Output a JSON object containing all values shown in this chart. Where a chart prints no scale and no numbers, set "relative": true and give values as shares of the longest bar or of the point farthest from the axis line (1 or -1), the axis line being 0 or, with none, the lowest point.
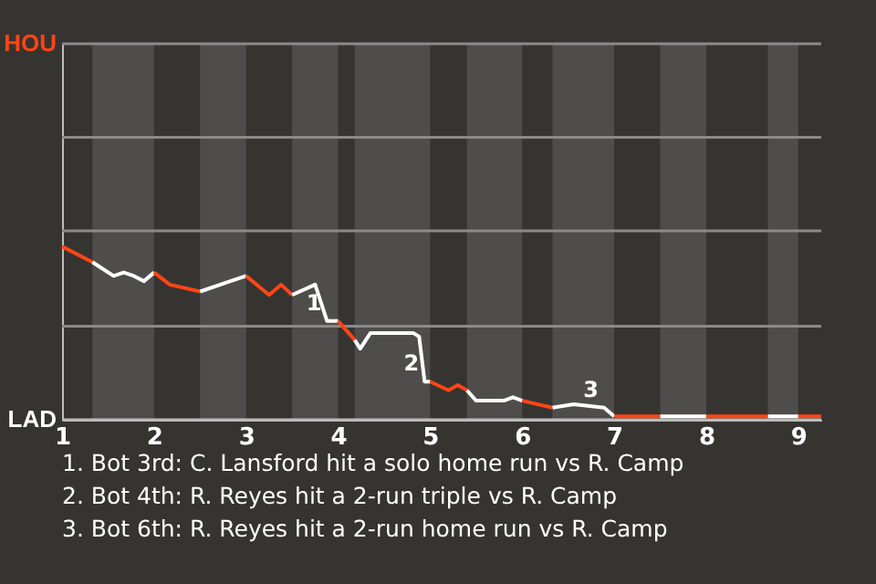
{
  "chart_data": {
    "type": "line",
    "relative": true,
    "series": [
      {
        "color": "#ff4515",
        "x": [
          1.0,
          1.33
        ],
        "values": [
          1,
          0.91
        ]
      },
      {
        "color": "#ffffff",
        "x": [
          1.33,
          1.56,
          1.67,
          1.78,
          1.89,
          2.0
        ],
        "values": [
          0.91,
          0.83,
          0.85,
          0.83,
          0.8,
          0.85
        ]
      },
      {
        "color": "#ff4515",
        "x": [
          2.0,
          2.17,
          2.5
        ],
        "values": [
          0.85,
          0.78,
          0.74
        ]
      },
      {
        "color": "#ffffff",
        "x": [
          2.5,
          2.83,
          3.0
        ],
        "values": [
          0.74,
          0.8,
          0.83
        ]
      },
      {
        "color": "#ff4515",
        "x": [
          3.0,
          3.25,
          3.38,
          3.5
        ],
        "values": [
          0.83,
          0.72,
          0.78,
          0.72
        ]
      },
      {
        "color": "#ffffff",
        "x": [
          3.5,
          3.75,
          3.88,
          4.0
        ],
        "values": [
          0.72,
          0.78,
          0.57,
          0.57
        ]
      },
      {
        "color": "#ff4515",
        "x": [
          4.0,
          4.18
        ],
        "values": [
          0.57,
          0.46
        ]
      },
      {
        "color": "#ffffff",
        "x": [
          4.18,
          4.24,
          4.35,
          4.82,
          4.88,
          4.94,
          5.0
        ],
        "values": [
          0.46,
          0.41,
          0.5,
          0.5,
          0.48,
          0.22,
          0.22
        ]
      },
      {
        "color": "#ff4515",
        "x": [
          5.0,
          5.2,
          5.3,
          5.4
        ],
        "values": [
          0.22,
          0.17,
          0.2,
          0.17
        ]
      },
      {
        "color": "#ffffff",
        "x": [
          5.4,
          5.5,
          5.8,
          5.9,
          6.0
        ],
        "values": [
          0.17,
          0.11,
          0.11,
          0.13,
          0.11
        ]
      },
      {
        "color": "#ff4515",
        "x": [
          6.0,
          6.33
        ],
        "values": [
          0.11,
          0.07
        ]
      },
      {
        "color": "#ffffff",
        "x": [
          6.33,
          6.56,
          6.89,
          7.0
        ],
        "values": [
          0.07,
          0.09,
          0.07,
          0.02
        ]
      },
      {
        "color": "#ff4515",
        "x": [
          7.0,
          7.5
        ],
        "values": [
          0.02,
          0.02
        ]
      },
      {
        "color": "#ffffff",
        "x": [
          7.5,
          8.0
        ],
        "values": [
          0.02,
          0.02
        ]
      },
      {
        "color": "#ff4515",
        "x": [
          8.0,
          8.67
        ],
        "values": [
          0.02,
          0.02
        ]
      },
      {
        "color": "#ffffff",
        "x": [
          8.67,
          9.0
        ],
        "values": [
          0.02,
          0.02
        ]
      },
      {
        "color": "#ff4515",
        "x": [
          9.0,
          9.25
        ],
        "values": [
          0.02,
          0.02
        ]
      }
    ],
    "xlim": [
      1,
      9.25
    ],
    "xticks": [
      1,
      2,
      3,
      4,
      5,
      6,
      7,
      8,
      9
    ],
    "ref_lines": [
      {
        "axis": "y",
        "value": 0,
        "label": "LAD",
        "color": "#bbbbbb"
      },
      {
        "axis": "y",
        "value": 0.54,
        "label": null,
        "color": "#8a8a8a"
      },
      {
        "axis": "y",
        "value": 1.09,
        "label": null,
        "color": "#8a8a8a"
      },
      {
        "axis": "y",
        "value": 1.63,
        "label": null,
        "color": "#8a8a8a"
      },
      {
        "axis": "y",
        "value": 2.17,
        "label": "HOU",
        "color": "#8a8a8a"
      }
    ],
    "bands": [
      {
        "axis": "x",
        "from": 1.33,
        "to": 2,
        "color": "#4e4d4b"
      },
      {
        "axis": "x",
        "from": 2.5,
        "to": 3,
        "color": "#4e4d4b"
      },
      {
        "axis": "x",
        "from": 3.5,
        "to": 4,
        "color": "#4e4d4b"
      },
      {
        "axis": "x",
        "from": 4.18,
        "to": 5,
        "color": "#4e4d4b"
      },
      {
        "axis": "x",
        "from": 5.4,
        "to": 6,
        "color": "#4e4d4b"
      },
      {
        "axis": "x",
        "from": 6.33,
        "to": 7,
        "color": "#4e4d4b"
      },
      {
        "axis": "x",
        "from": 7.5,
        "to": 8,
        "color": "#4e4d4b"
      },
      {
        "axis": "x",
        "from": 8.67,
        "to": 9,
        "color": "#4e4d4b"
      }
    ],
    "annotations": [
      {
        "text": "1",
        "x": 3.88,
        "y": 0.57
      },
      {
        "text": "2",
        "x": 4.94,
        "y": 0.22
      },
      {
        "text": "3",
        "x": 6.89,
        "y": 0.07
      },
      "1. Bot 3rd: C. Lansford hit a solo home run vs R. Camp",
      "2. Bot 4th: R. Reyes hit a 2-run triple vs R. Camp",
      "3. Bot 6th: R. Reyes hit a 2-run home run vs R. Camp"
    ]
  }
}
